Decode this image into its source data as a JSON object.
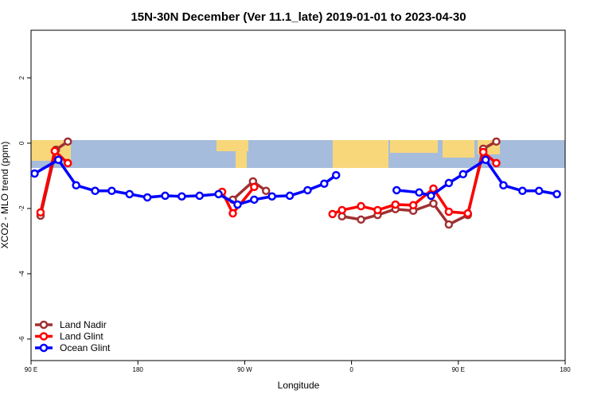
{
  "chart_data": {
    "type": "line",
    "title": "15N-30N December (Ver 11.1_late)   2019-01-01 to 2023-04-30",
    "x_label": "Longitude",
    "y_label": "XCO2 - MLO trend (ppm)",
    "xlim": [
      90,
      540
    ],
    "xticks": [
      {
        "value": 90,
        "label": "90 E"
      },
      {
        "value": 180,
        "label": "180"
      },
      {
        "value": 270,
        "label": "90 W"
      },
      {
        "value": 360,
        "label": "0"
      },
      {
        "value": 450,
        "label": "90 E"
      },
      {
        "value": 540,
        "label": "180"
      }
    ],
    "ylim": [
      -6.66,
      3.46
    ],
    "yticks": [
      -6,
      -4,
      -2,
      0,
      2
    ],
    "legend": "bottom-left",
    "series": [
      {
        "name": "Land Nadir",
        "color": "#a03030",
        "x": [
          98,
          111,
          121,
          null,
          260,
          277,
          288,
          null,
          352,
          368,
          382,
          397,
          412,
          429,
          442,
          458,
          471,
          482
        ],
        "values": [
          -2.22,
          -0.2,
          0.05,
          null,
          -1.73,
          -1.17,
          -1.46,
          null,
          -2.24,
          -2.34,
          -2.2,
          -2.02,
          -2.07,
          -1.85,
          -2.49,
          -2.2,
          -0.17,
          0.05
        ]
      },
      {
        "name": "Land Glint",
        "color": "#ff0000",
        "x": [
          98,
          110,
          121,
          null,
          251,
          260,
          278,
          null,
          344,
          352,
          368,
          382,
          397,
          412,
          429,
          442,
          458,
          471,
          482
        ],
        "values": [
          -2.12,
          -0.24,
          -0.61,
          null,
          -1.49,
          -2.15,
          -1.34,
          null,
          -2.17,
          -2.05,
          -1.93,
          -2.05,
          -1.88,
          -1.9,
          -1.39,
          -2.1,
          -2.15,
          -0.27,
          -0.61
        ]
      },
      {
        "name": "Ocean Glint",
        "color": "#0000ff",
        "x": [
          93,
          113,
          128,
          144,
          158,
          173,
          188,
          203,
          217,
          232,
          248,
          264,
          278,
          293,
          308,
          323,
          337,
          347,
          null,
          398,
          417,
          427,
          442,
          454,
          473,
          488,
          504,
          518,
          533
        ],
        "values": [
          -0.93,
          -0.51,
          -1.29,
          -1.46,
          -1.46,
          -1.56,
          -1.66,
          -1.61,
          -1.63,
          -1.61,
          -1.56,
          -1.88,
          -1.73,
          -1.63,
          -1.61,
          -1.44,
          -1.24,
          -0.98,
          null,
          -1.44,
          -1.51,
          -1.61,
          -1.22,
          -0.95,
          -0.51,
          -1.29,
          -1.46,
          -1.46,
          -1.56
        ]
      }
    ]
  }
}
